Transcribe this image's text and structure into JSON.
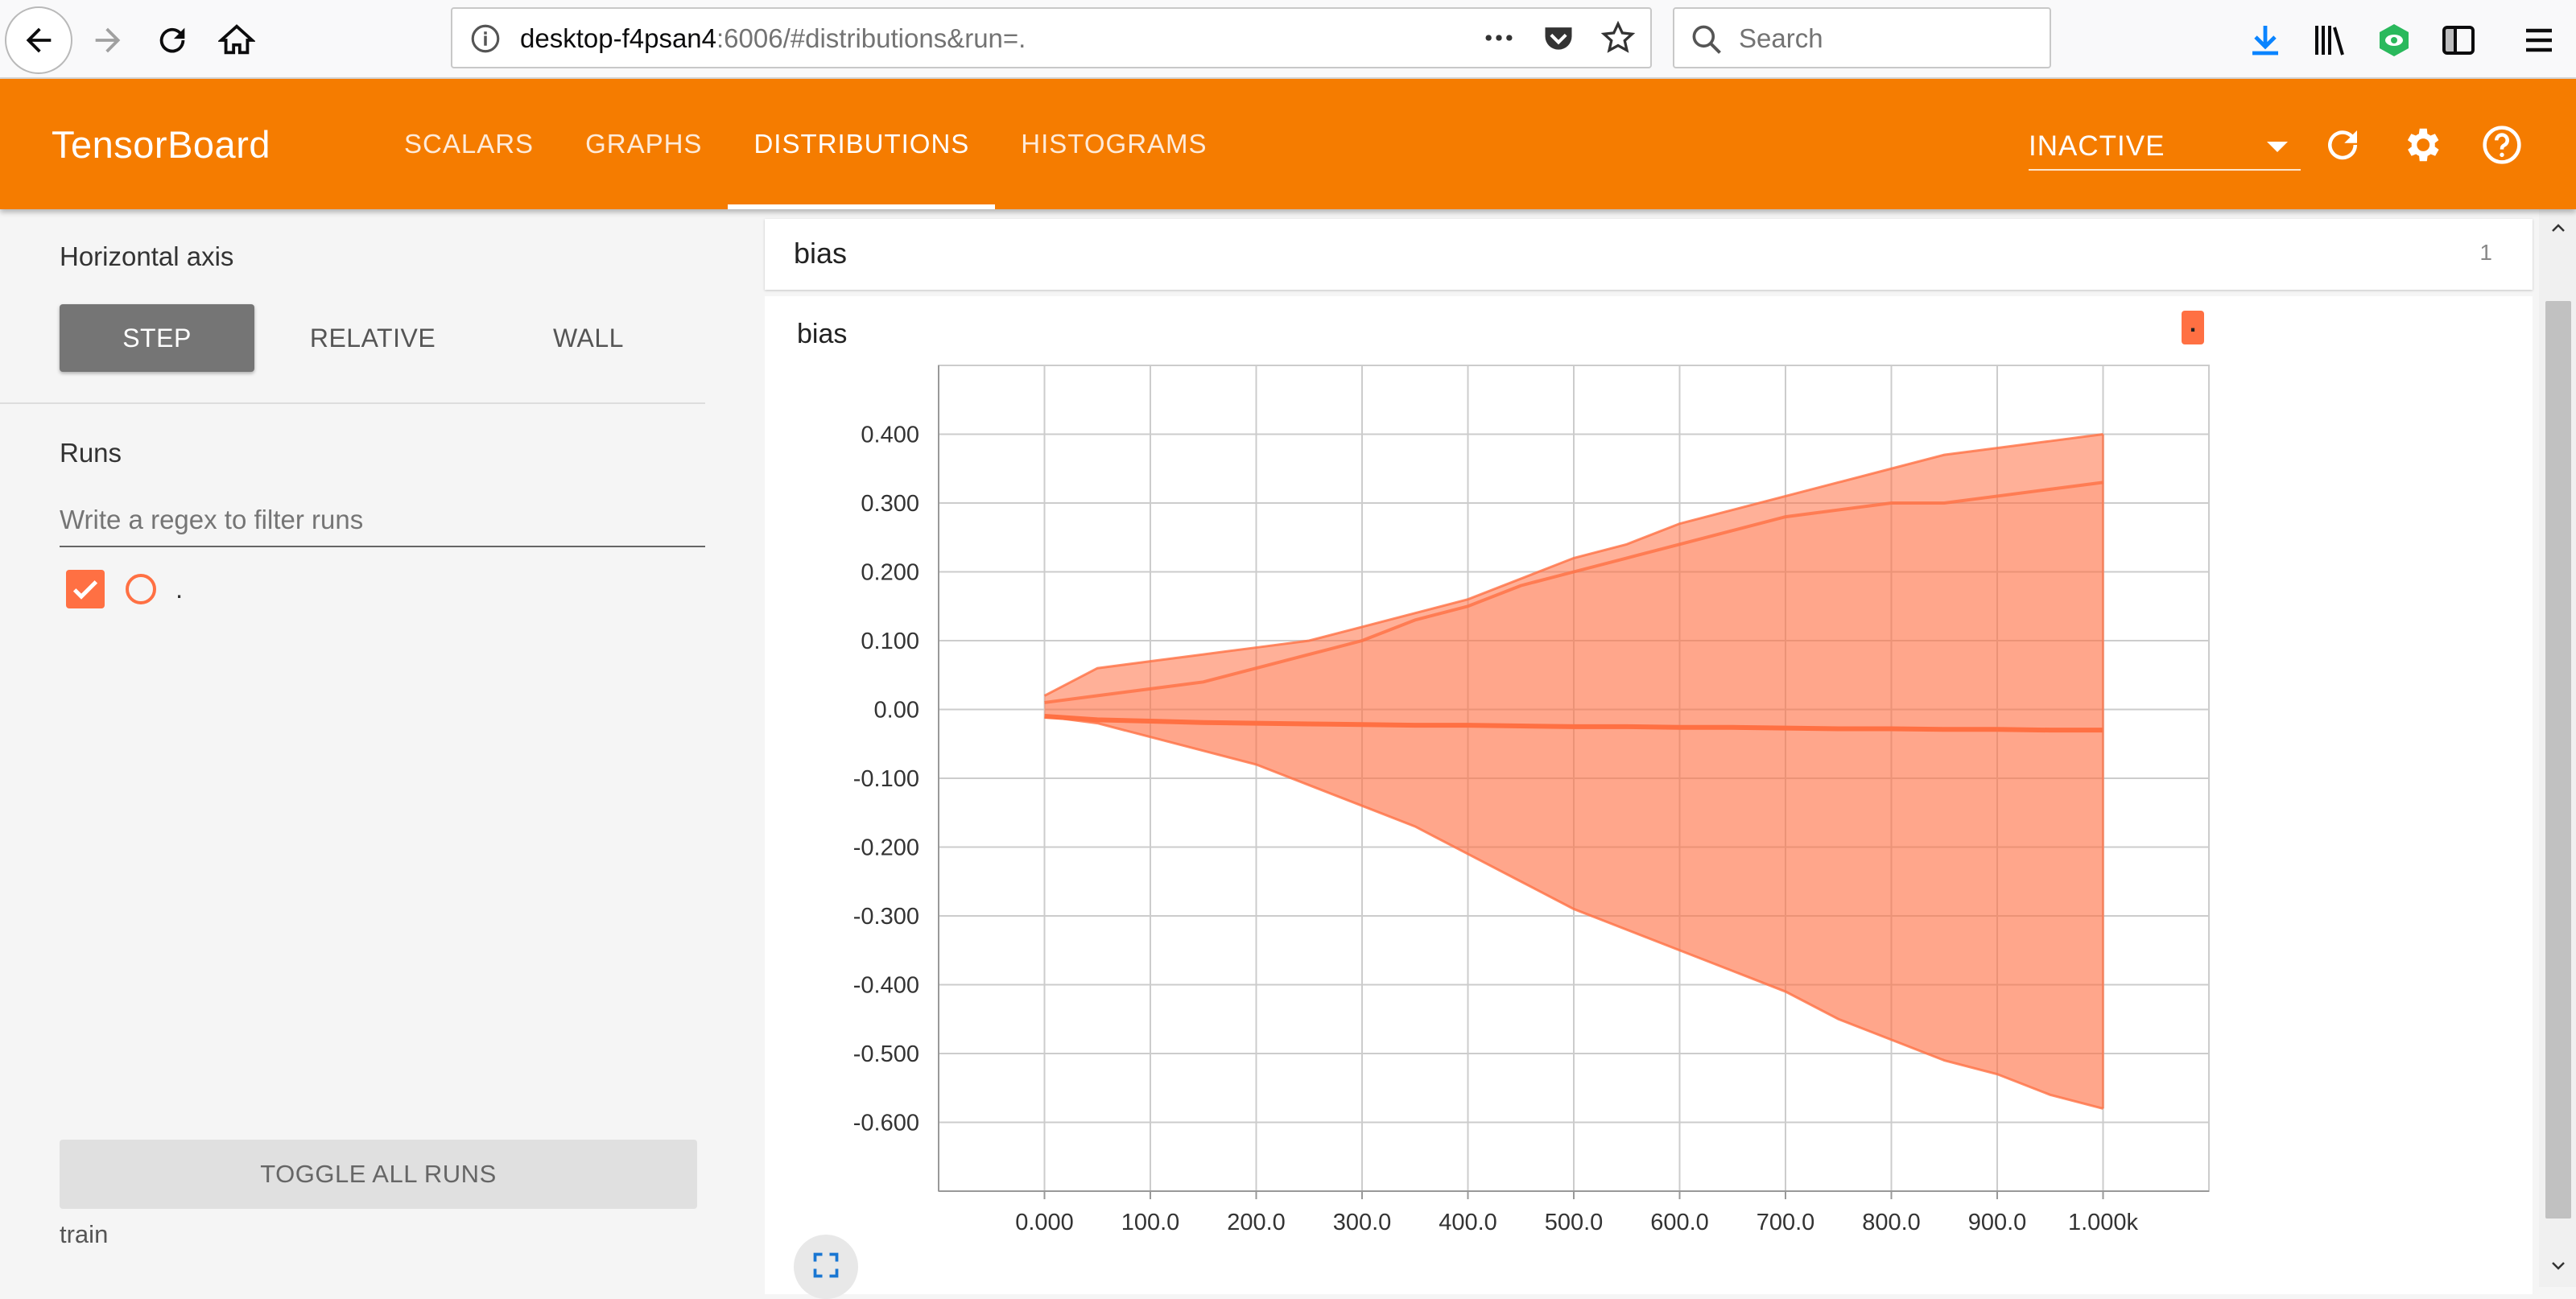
{
  "browser": {
    "url_host": "desktop-f4psan4",
    "url_rest": ":6006/#distributions&run=.",
    "search_placeholder": "Search"
  },
  "header": {
    "brand": "TensorBoard",
    "tabs": [
      "SCALARS",
      "GRAPHS",
      "DISTRIBUTIONS",
      "HISTOGRAMS"
    ],
    "active_tab": "DISTRIBUTIONS",
    "run_select": "INACTIVE",
    "accent_color": "#f57c00"
  },
  "sidebar": {
    "horizontal_axis_label": "Horizontal axis",
    "axis_buttons": [
      "STEP",
      "RELATIVE",
      "WALL"
    ],
    "active_axis": "STEP",
    "runs_label": "Runs",
    "regex_placeholder": "Write a regex to filter runs",
    "run_name": ".",
    "toggle_all": "TOGGLE ALL RUNS",
    "footer_label": "train"
  },
  "category": {
    "title": "bias",
    "count": "1"
  },
  "chart_data": {
    "type": "area",
    "title": "bias",
    "run_tag": ".",
    "color": "#ff7043",
    "x_tick_labels": [
      "0.000",
      "100.0",
      "200.0",
      "300.0",
      "400.0",
      "500.0",
      "600.0",
      "700.0",
      "800.0",
      "900.0",
      "1.000k"
    ],
    "y_tick_labels": [
      "0.400",
      "0.300",
      "0.200",
      "0.100",
      "0.00",
      "-0.100",
      "-0.200",
      "-0.300",
      "-0.400",
      "-0.500",
      "-0.600"
    ],
    "xlim": [
      -100,
      1100
    ],
    "ylim": [
      -0.7,
      0.5
    ],
    "x": [
      0,
      50,
      100,
      150,
      200,
      250,
      300,
      350,
      400,
      450,
      500,
      550,
      600,
      650,
      700,
      750,
      800,
      850,
      900,
      950,
      1000
    ],
    "upper": [
      0.02,
      0.06,
      0.07,
      0.08,
      0.09,
      0.1,
      0.12,
      0.14,
      0.16,
      0.19,
      0.22,
      0.24,
      0.27,
      0.29,
      0.31,
      0.33,
      0.35,
      0.37,
      0.38,
      0.39,
      0.4
    ],
    "upper_inner": [
      0.01,
      0.02,
      0.03,
      0.04,
      0.06,
      0.08,
      0.1,
      0.13,
      0.15,
      0.18,
      0.2,
      0.22,
      0.24,
      0.26,
      0.28,
      0.29,
      0.3,
      0.3,
      0.31,
      0.32,
      0.33
    ],
    "median": [
      -0.01,
      -0.015,
      -0.017,
      -0.019,
      -0.02,
      -0.021,
      -0.022,
      -0.023,
      -0.023,
      -0.024,
      -0.025,
      -0.025,
      -0.026,
      -0.026,
      -0.027,
      -0.028,
      -0.028,
      -0.029,
      -0.029,
      -0.03,
      -0.03
    ],
    "lower": [
      -0.01,
      -0.02,
      -0.04,
      -0.06,
      -0.08,
      -0.11,
      -0.14,
      -0.17,
      -0.21,
      -0.25,
      -0.29,
      -0.32,
      -0.35,
      -0.38,
      -0.41,
      -0.45,
      -0.48,
      -0.51,
      -0.53,
      -0.56,
      -0.58
    ]
  }
}
